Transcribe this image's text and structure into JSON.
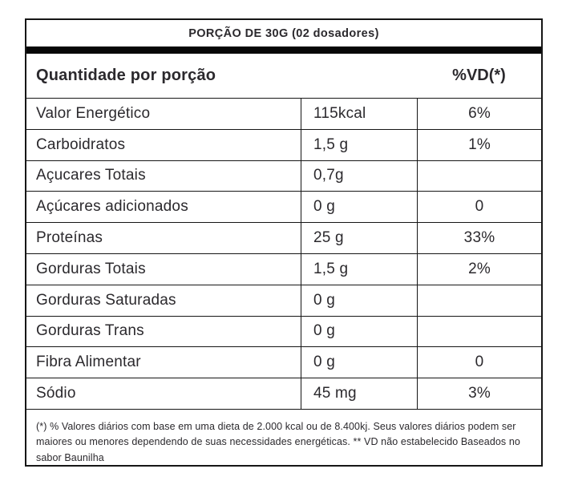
{
  "header": {
    "portion_title": "PORÇÃO DE 30G (02 dosadores)",
    "quantity_label": "Quantidade por porção",
    "vd_label": "%VD(*)"
  },
  "rows": [
    {
      "label": "Valor Energético",
      "amount": "115kcal",
      "vd": "6%"
    },
    {
      "label": "Carboidratos",
      "amount": "1,5 g",
      "vd": "1%"
    },
    {
      "label": "Açucares Totais",
      "amount": "0,7g",
      "vd": ""
    },
    {
      "label": "Açúcares adicionados",
      "amount": "0 g",
      "vd": "0"
    },
    {
      "label": "Proteínas",
      "amount": "25 g",
      "vd": "33%"
    },
    {
      "label": "Gorduras Totais",
      "amount": "1,5 g",
      "vd": "2%"
    },
    {
      "label": "Gorduras Saturadas",
      "amount": "0 g",
      "vd": ""
    },
    {
      "label": "Gorduras Trans",
      "amount": "0 g",
      "vd": ""
    },
    {
      "label": "Fibra Alimentar",
      "amount": "0 g",
      "vd": "0"
    },
    {
      "label": "Sódio",
      "amount": "45 mg",
      "vd": "3%"
    }
  ],
  "footnote": "(*) % Valores diários com base em uma dieta de 2.000 kcal ou de 8.400kj. Seus valores diários podem ser maiores ou menores dependendo de suas necessidades energéticas. ** VD não estabelecido Baseados no sabor Baunilha",
  "colors": {
    "text": "#2b292d",
    "border": "#161616",
    "bar": "#070707",
    "background": "#ffffff"
  }
}
